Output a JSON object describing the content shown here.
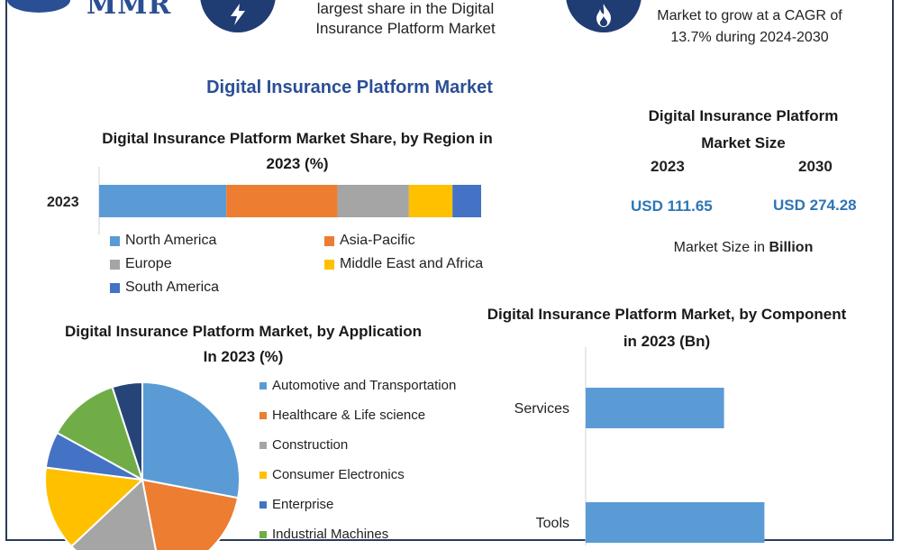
{
  "header": {
    "logo_text": "MMR",
    "left_text_line1": "largest share in the Digital",
    "left_text_line2": "Insurance Platform Market",
    "right_text_line1": "Market to grow at a CAGR of",
    "right_text_line2": "13.7% during 2024-2030",
    "left_icon": "lightning-icon",
    "right_icon": "flame-icon"
  },
  "title": "Digital Insurance Platform Market",
  "market_size": {
    "title_line1": "Digital Insurance Platform",
    "title_line2": "Market Size",
    "year1": "2023",
    "year2": "2030",
    "value1": "USD 111.65",
    "value2": "USD 274.28",
    "unit_prefix": "Market Size in ",
    "unit_bold": "Billion"
  },
  "colors": {
    "blue": "#5b9bd5",
    "orange": "#ed7d31",
    "gray": "#a5a5a5",
    "yellow": "#ffc000",
    "darkblue": "#4472c4",
    "green": "#70ad47",
    "navy": "#264478",
    "accent": "#2a4f94"
  },
  "chart_data": [
    {
      "type": "bar",
      "orientation": "horizontal-stacked",
      "title": "Digital Insurance Platform Market Share, by Region in 2023 (%)",
      "categories": [
        "2023"
      ],
      "series": [
        {
          "name": "North America",
          "values": [
            33.3
          ],
          "color": "#5b9bd5"
        },
        {
          "name": "Asia-Pacific",
          "values": [
            29.1
          ],
          "color": "#ed7d31"
        },
        {
          "name": "Europe",
          "values": [
            18.7
          ],
          "color": "#a5a5a5"
        },
        {
          "name": "Middle East and Africa",
          "values": [
            11.4
          ],
          "color": "#ffc000"
        },
        {
          "name": "South America",
          "values": [
            7.5
          ],
          "color": "#4472c4"
        }
      ],
      "xlim": [
        0,
        100
      ],
      "legend": "bottom"
    },
    {
      "type": "pie",
      "title": "Digital Insurance Platform Market, by Application In 2023 (%)",
      "labels": [
        "Automotive and Transportation",
        "Healthcare & Life science",
        "Construction",
        "Consumer Electronics",
        "Enterprise",
        "Industrial Machines",
        ""
      ],
      "values": [
        28,
        19,
        16,
        14,
        6,
        12,
        5
      ],
      "colors": [
        "#5b9bd5",
        "#ed7d31",
        "#a5a5a5",
        "#ffc000",
        "#4472c4",
        "#70ad47",
        "#264478"
      ],
      "legend": "right"
    },
    {
      "type": "bar",
      "orientation": "horizontal",
      "title": "Digital Insurance Platform Market, by Component in 2023 (Bn)",
      "categories": [
        "Services",
        "Tools"
      ],
      "values": [
        48,
        62
      ],
      "xlim": [
        0,
        100
      ],
      "color": "#5b9bd5"
    }
  ]
}
